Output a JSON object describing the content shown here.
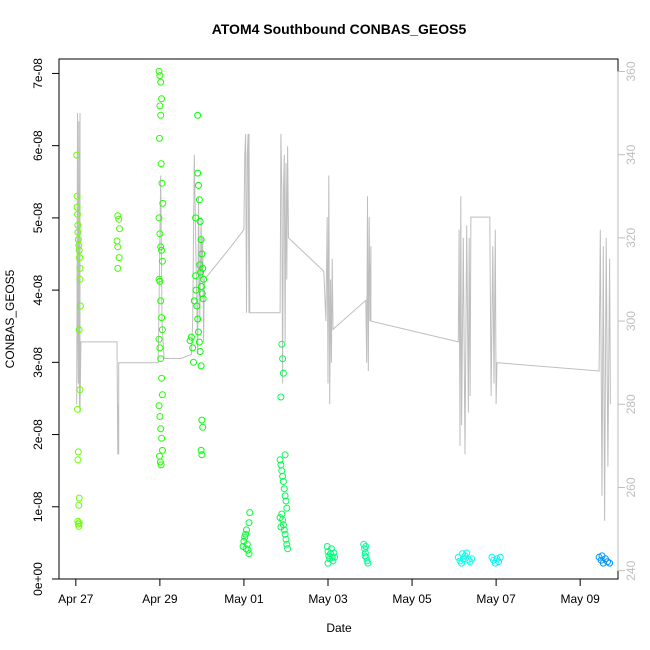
{
  "chart_data": {
    "type": "scatter",
    "title": "ATOM4 Southbound CONBAS_GEOS5",
    "xlabel": "Date",
    "ylabel": "CONBAS_GEOS5",
    "xlim": [
      -0.4,
      12.9
    ],
    "ylim": [
      0,
      7.2e-08
    ],
    "y2lim": [
      238,
      363
    ],
    "x_ticks": [
      {
        "value": 0,
        "label": "Apr 27"
      },
      {
        "value": 2,
        "label": "Apr 29"
      },
      {
        "value": 4,
        "label": "May 01"
      },
      {
        "value": 6,
        "label": "May 03"
      },
      {
        "value": 8,
        "label": "May 05"
      },
      {
        "value": 10,
        "label": "May 07"
      },
      {
        "value": 12,
        "label": "May 09"
      }
    ],
    "y_ticks": [
      {
        "value": 0,
        "label": "0e+00"
      },
      {
        "value": 1e-08,
        "label": "1e-08"
      },
      {
        "value": 2e-08,
        "label": "2e-08"
      },
      {
        "value": 3e-08,
        "label": "3e-08"
      },
      {
        "value": 4e-08,
        "label": "4e-08"
      },
      {
        "value": 5e-08,
        "label": "5e-08"
      },
      {
        "value": 6e-08,
        "label": "6e-08"
      },
      {
        "value": 7e-08,
        "label": "7e-08"
      }
    ],
    "y2_ticks": [
      {
        "value": 240,
        "label": "240"
      },
      {
        "value": 260,
        "label": "260"
      },
      {
        "value": 280,
        "label": "280"
      },
      {
        "value": 300,
        "label": "300"
      },
      {
        "value": 320,
        "label": "320"
      },
      {
        "value": 340,
        "label": "340"
      },
      {
        "value": 360,
        "label": "360"
      }
    ],
    "series": [
      {
        "name": "CONBAS_GEOS5",
        "kind": "points",
        "color_by": "date",
        "points": [
          [
            0.02,
            5.87e-08
          ],
          [
            0.03,
            5.3e-08
          ],
          [
            0.03,
            5.15e-08
          ],
          [
            0.04,
            5.05e-08
          ],
          [
            0.05,
            4.9e-08
          ],
          [
            0.05,
            4.8e-08
          ],
          [
            0.06,
            4.7e-08
          ],
          [
            0.07,
            4.62e-08
          ],
          [
            0.08,
            4.55e-08
          ],
          [
            0.09,
            4.45e-08
          ],
          [
            0.1,
            4.3e-08
          ],
          [
            0.1,
            4.15e-08
          ],
          [
            0.11,
            3.78e-08
          ],
          [
            0.08,
            3.45e-08
          ],
          [
            0.1,
            2.62e-08
          ],
          [
            0.04,
            2.35e-08
          ],
          [
            0.06,
            1.76e-08
          ],
          [
            0.05,
            1.65e-08
          ],
          [
            0.08,
            1.12e-08
          ],
          [
            0.07,
            1.02e-08
          ],
          [
            0.05,
            8e-09
          ],
          [
            0.06,
            7.6e-09
          ],
          [
            0.07,
            7.3e-09
          ],
          [
            0.08,
            7.8e-09
          ],
          [
            1.0,
            5.03e-08
          ],
          [
            1.02,
            4.98e-08
          ],
          [
            1.04,
            4.85e-08
          ],
          [
            0.98,
            4.68e-08
          ],
          [
            1.0,
            4.6e-08
          ],
          [
            1.03,
            4.45e-08
          ],
          [
            1.0,
            4.3e-08
          ],
          [
            1.98,
            7.03e-08
          ],
          [
            2.0,
            6.97e-08
          ],
          [
            2.02,
            6.88e-08
          ],
          [
            2.04,
            6.65e-08
          ],
          [
            2.0,
            6.55e-08
          ],
          [
            2.02,
            6.42e-08
          ],
          [
            1.99,
            6.1e-08
          ],
          [
            2.03,
            5.75e-08
          ],
          [
            2.05,
            5.48e-08
          ],
          [
            2.07,
            5.2e-08
          ],
          [
            1.98,
            5e-08
          ],
          [
            2.0,
            4.78e-08
          ],
          [
            2.02,
            4.6e-08
          ],
          [
            2.04,
            4.55e-08
          ],
          [
            2.06,
            4.4e-08
          ],
          [
            1.98,
            4.15e-08
          ],
          [
            2.0,
            4.12e-08
          ],
          [
            2.02,
            3.85e-08
          ],
          [
            2.04,
            3.62e-08
          ],
          [
            2.06,
            3.45e-08
          ],
          [
            1.98,
            3.32e-08
          ],
          [
            2.0,
            3.2e-08
          ],
          [
            2.02,
            3.05e-08
          ],
          [
            2.04,
            2.78e-08
          ],
          [
            2.06,
            2.55e-08
          ],
          [
            1.98,
            2.4e-08
          ],
          [
            2.0,
            2.25e-08
          ],
          [
            2.02,
            2.08e-08
          ],
          [
            2.04,
            1.95e-08
          ],
          [
            2.06,
            1.78e-08
          ],
          [
            1.99,
            1.7e-08
          ],
          [
            2.01,
            1.62e-08
          ],
          [
            2.03,
            1.58e-08
          ],
          [
            2.75,
            3.35e-08
          ],
          [
            2.78,
            3.2e-08
          ],
          [
            2.8,
            3e-08
          ],
          [
            2.72,
            3.3e-08
          ],
          [
            2.82,
            3.85e-08
          ],
          [
            2.85,
            4.2e-08
          ],
          [
            2.85,
            5e-08
          ],
          [
            2.9,
            5.62e-08
          ],
          [
            2.9,
            6.42e-08
          ],
          [
            2.92,
            5.45e-08
          ],
          [
            2.94,
            5.25e-08
          ],
          [
            2.96,
            4.95e-08
          ],
          [
            2.98,
            4.7e-08
          ],
          [
            3.0,
            4.5e-08
          ],
          [
            3.02,
            4.3e-08
          ],
          [
            3.04,
            4.15e-08
          ],
          [
            2.86,
            4e-08
          ],
          [
            2.88,
            3.78e-08
          ],
          [
            2.9,
            3.6e-08
          ],
          [
            2.92,
            3.42e-08
          ],
          [
            2.94,
            3.28e-08
          ],
          [
            2.96,
            3.15e-08
          ],
          [
            2.98,
            2.95e-08
          ],
          [
            3.0,
            2.2e-08
          ],
          [
            3.02,
            2.1e-08
          ],
          [
            2.98,
            1.78e-08
          ],
          [
            3.0,
            1.72e-08
          ],
          [
            2.95,
            4.35e-08
          ],
          [
            2.97,
            4.25e-08
          ],
          [
            2.99,
            4.05e-08
          ],
          [
            3.01,
            3.95e-08
          ],
          [
            3.03,
            3.88e-08
          ],
          [
            3.98,
            4.5e-09
          ],
          [
            4.0,
            5.2e-09
          ],
          [
            4.02,
            5.8e-09
          ],
          [
            4.04,
            6.2e-09
          ],
          [
            4.06,
            6.8e-09
          ],
          [
            4.08,
            4.8e-09
          ],
          [
            4.1,
            4e-09
          ],
          [
            4.12,
            7.8e-09
          ],
          [
            4.14,
            9.2e-09
          ],
          [
            4.12,
            3.5e-09
          ],
          [
            4.05,
            4.2e-09
          ],
          [
            4.9,
            3.25e-08
          ],
          [
            4.92,
            3.05e-08
          ],
          [
            4.94,
            2.85e-08
          ],
          [
            4.88,
            2.52e-08
          ],
          [
            4.86,
            1.65e-08
          ],
          [
            4.88,
            1.58e-08
          ],
          [
            4.9,
            1.5e-08
          ],
          [
            4.92,
            1.42e-08
          ],
          [
            4.94,
            1.35e-08
          ],
          [
            4.96,
            1.25e-08
          ],
          [
            4.98,
            1.15e-08
          ],
          [
            5.0,
            1.08e-08
          ],
          [
            5.02,
            9.8e-09
          ],
          [
            4.9,
            9e-09
          ],
          [
            4.92,
            8.2e-09
          ],
          [
            4.94,
            7.5e-09
          ],
          [
            4.96,
            6.8e-09
          ],
          [
            4.98,
            6.2e-09
          ],
          [
            5.0,
            5.5e-09
          ],
          [
            5.02,
            4.8e-09
          ],
          [
            5.04,
            4.2e-09
          ],
          [
            4.86,
            8.5e-09
          ],
          [
            4.88,
            7.2e-09
          ],
          [
            4.98,
            1.72e-08
          ],
          [
            5.98,
            4.5e-09
          ],
          [
            6.0,
            3.8e-09
          ],
          [
            6.02,
            3.2e-09
          ],
          [
            6.04,
            2.8e-09
          ],
          [
            6.06,
            3.5e-09
          ],
          [
            6.08,
            4.2e-09
          ],
          [
            6.1,
            3e-09
          ],
          [
            6.12,
            2.5e-09
          ],
          [
            6.0,
            2.2e-09
          ],
          [
            6.14,
            3.6e-09
          ],
          [
            6.16,
            3e-09
          ],
          [
            6.85,
            4.8e-09
          ],
          [
            6.87,
            4.2e-09
          ],
          [
            6.89,
            3.6e-09
          ],
          [
            6.91,
            3e-09
          ],
          [
            6.93,
            2.5e-09
          ],
          [
            6.95,
            2.2e-09
          ],
          [
            6.88,
            3.2e-09
          ],
          [
            6.9,
            4.5e-09
          ],
          [
            9.1,
            3e-09
          ],
          [
            9.14,
            2.5e-09
          ],
          [
            9.18,
            2.2e-09
          ],
          [
            9.22,
            2.8e-09
          ],
          [
            9.26,
            3.2e-09
          ],
          [
            9.3,
            3.6e-09
          ],
          [
            9.34,
            2.7e-09
          ],
          [
            9.38,
            2.4e-09
          ],
          [
            9.42,
            2.8e-09
          ],
          [
            9.2,
            3.5e-09
          ],
          [
            9.9,
            3e-09
          ],
          [
            9.94,
            2.6e-09
          ],
          [
            9.98,
            2.2e-09
          ],
          [
            10.02,
            2.8e-09
          ],
          [
            10.06,
            2.4e-09
          ],
          [
            10.1,
            3e-09
          ],
          [
            12.45,
            3e-09
          ],
          [
            12.5,
            2.6e-09
          ],
          [
            12.55,
            2.2e-09
          ],
          [
            12.6,
            2.8e-09
          ],
          [
            12.65,
            2.4e-09
          ],
          [
            12.7,
            2.2e-09
          ],
          [
            12.52,
            3.2e-09
          ]
        ]
      },
      {
        "name": "secondary-axis-trace",
        "kind": "line",
        "axis": "right",
        "color": "#bebebe",
        "points": [
          [
            0.02,
            280
          ],
          [
            0.04,
            350
          ],
          [
            0.05,
            295
          ],
          [
            0.06,
            285
          ],
          [
            0.07,
            348
          ],
          [
            0.08,
            287
          ],
          [
            0.09,
            279
          ],
          [
            0.1,
            350
          ],
          [
            0.1,
            278
          ],
          [
            0.12,
            295
          ],
          [
            0.98,
            295
          ],
          [
            1.0,
            268
          ],
          [
            1.0,
            280
          ],
          [
            1.02,
            268
          ],
          [
            1.02,
            290
          ],
          [
            1.96,
            290
          ],
          [
            2.0,
            320
          ],
          [
            2.02,
            335
          ],
          [
            2.05,
            300
          ],
          [
            2.1,
            291
          ],
          [
            2.5,
            291
          ],
          [
            2.75,
            292
          ],
          [
            2.78,
            300
          ],
          [
            2.82,
            340
          ],
          [
            2.86,
            315
          ],
          [
            2.9,
            292
          ],
          [
            2.92,
            330
          ],
          [
            2.95,
            300
          ],
          [
            2.98,
            325
          ],
          [
            3.0,
            310
          ],
          [
            3.02,
            320
          ],
          [
            3.04,
            295
          ],
          [
            3.06,
            310
          ],
          [
            3.06,
            310
          ],
          [
            3.7,
            318
          ],
          [
            4.0,
            322
          ],
          [
            4.02,
            340
          ],
          [
            4.04,
            345
          ],
          [
            4.06,
            302
          ],
          [
            4.08,
            340
          ],
          [
            4.1,
            345
          ],
          [
            4.12,
            302
          ],
          [
            4.12,
            345
          ],
          [
            4.14,
            302
          ],
          [
            4.14,
            302
          ],
          [
            4.86,
            302
          ],
          [
            4.88,
            345
          ],
          [
            4.9,
            332
          ],
          [
            4.92,
            285
          ],
          [
            4.94,
            330
          ],
          [
            4.96,
            340
          ],
          [
            4.98,
            295
          ],
          [
            5.0,
            338
          ],
          [
            5.02,
            310
          ],
          [
            5.04,
            342
          ],
          [
            5.06,
            320
          ],
          [
            5.06,
            320
          ],
          [
            5.9,
            312
          ],
          [
            5.95,
            300
          ],
          [
            5.98,
            325
          ],
          [
            6.0,
            285
          ],
          [
            6.02,
            335
          ],
          [
            6.04,
            280
          ],
          [
            6.06,
            310
          ],
          [
            6.08,
            290
          ],
          [
            6.1,
            315
          ],
          [
            6.12,
            298
          ],
          [
            6.12,
            298
          ],
          [
            6.9,
            305
          ],
          [
            6.92,
            290
          ],
          [
            6.94,
            330
          ],
          [
            6.96,
            288
          ],
          [
            6.98,
            325
          ],
          [
            7.0,
            300
          ],
          [
            7.02,
            318
          ],
          [
            7.02,
            300
          ],
          [
            9.1,
            295
          ],
          [
            9.12,
            322
          ],
          [
            9.14,
            270
          ],
          [
            9.16,
            330
          ],
          [
            9.18,
            275
          ],
          [
            9.22,
            320
          ],
          [
            9.26,
            268
          ],
          [
            9.3,
            323
          ],
          [
            9.34,
            278
          ],
          [
            9.36,
            320
          ],
          [
            9.38,
            282
          ],
          [
            9.4,
            325
          ],
          [
            9.4,
            325
          ],
          [
            9.85,
            325
          ],
          [
            9.88,
            282
          ],
          [
            9.92,
            318
          ],
          [
            9.95,
            285
          ],
          [
            9.98,
            322
          ],
          [
            10.0,
            280
          ],
          [
            10.02,
            290
          ],
          [
            10.02,
            290
          ],
          [
            12.45,
            288
          ],
          [
            12.48,
            322
          ],
          [
            12.52,
            258
          ],
          [
            12.55,
            318
          ],
          [
            12.58,
            252
          ],
          [
            12.62,
            320
          ],
          [
            12.66,
            265
          ],
          [
            12.7,
            315
          ],
          [
            12.72,
            280
          ]
        ]
      }
    ]
  }
}
